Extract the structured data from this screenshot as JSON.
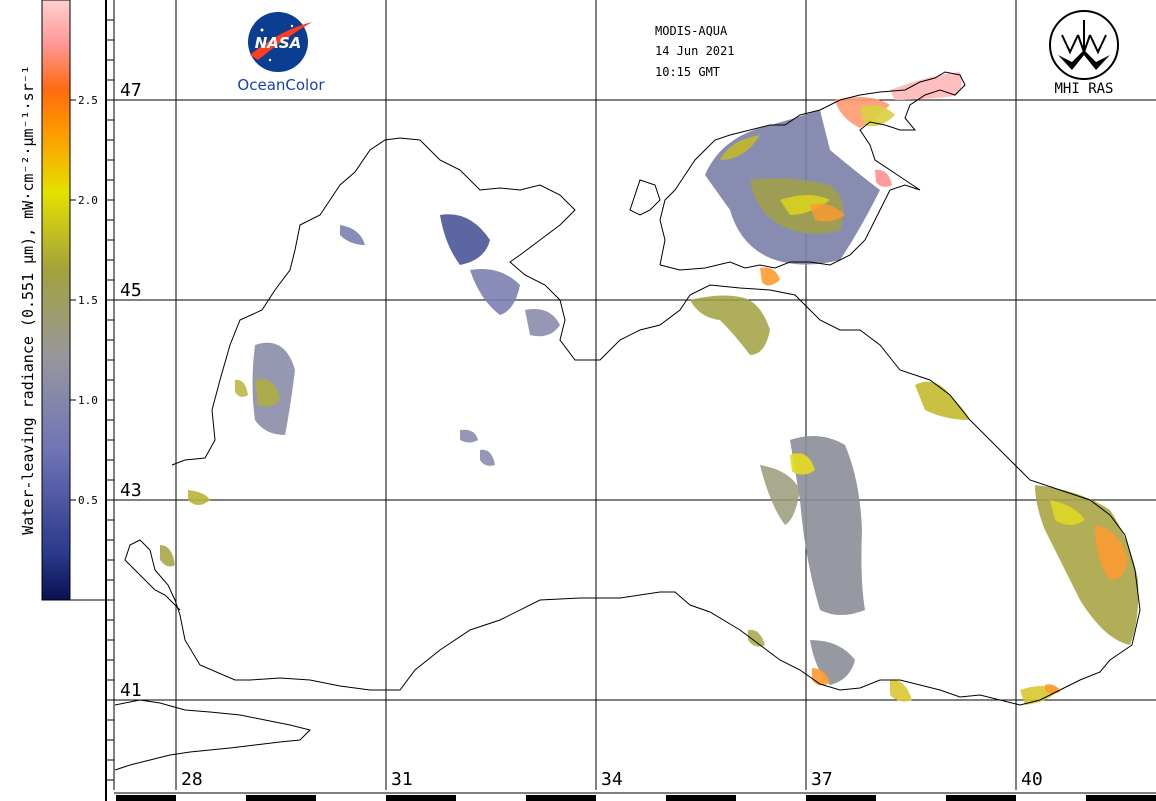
{
  "header": {
    "sensor": "MODIS-AQUA",
    "date": "14 Jun 2021",
    "time": "10:15 GMT"
  },
  "logos": {
    "nasa_text": "NASA",
    "oceancolor_text": "OceanColor",
    "mhi_text": "MHI RAS"
  },
  "colorbar": {
    "title": "Water-leaving radiance (0.551 μm), mW·cm⁻²·μm⁻¹·sr⁻¹",
    "ticks": [
      "0.5",
      "1.0",
      "1.5",
      "2.0",
      "2.5"
    ],
    "colors": [
      "#0a1050",
      "#2b3a8c",
      "#6f74b5",
      "#9696a0",
      "#a3a23c",
      "#e4e000",
      "#ff9a00",
      "#ff6a10",
      "#ff9a9a",
      "#ffd0d0"
    ]
  },
  "lat_labels": [
    "47",
    "45",
    "43",
    "41"
  ],
  "lon_labels": [
    "28",
    "31",
    "34",
    "37",
    "40"
  ]
}
